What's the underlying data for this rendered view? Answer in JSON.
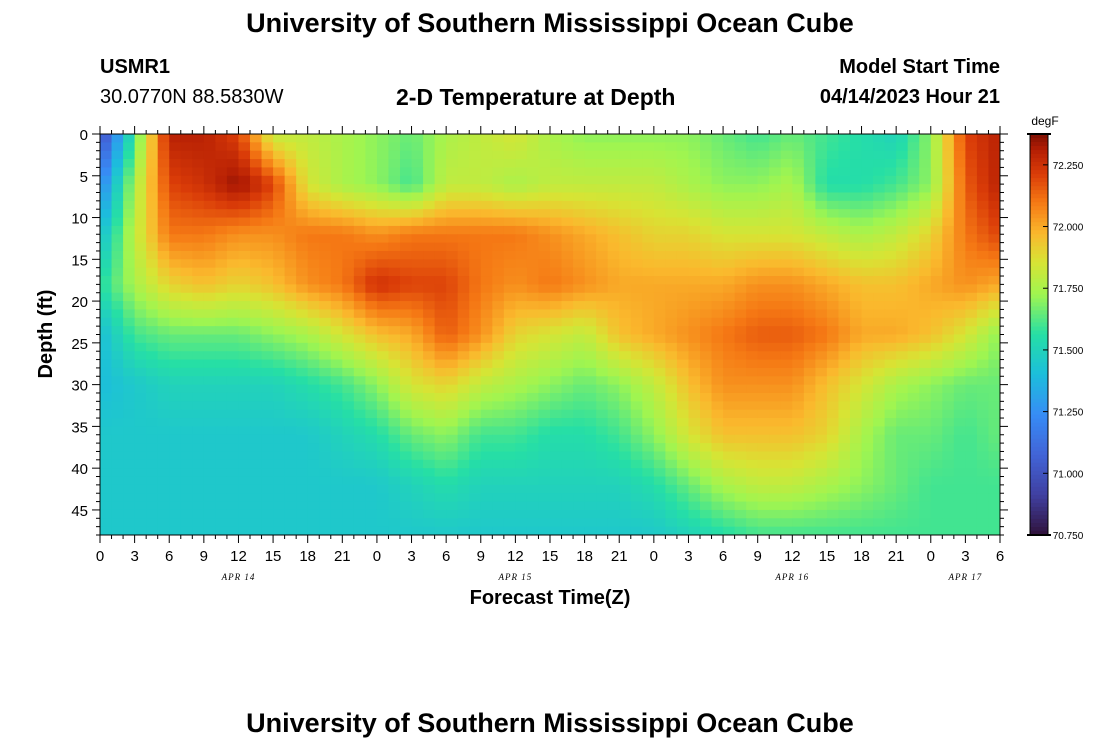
{
  "header": {
    "title": "University of Southern Mississippi Ocean Cube",
    "station_id": "USMR1",
    "station_coords": "30.0770N  88.5830W",
    "chart_title": "2-D Temperature at Depth",
    "model_start_label": "Model Start Time",
    "model_start_value": "04/14/2023 Hour 21"
  },
  "footer": {
    "title": "University of Southern Mississippi Ocean Cube"
  },
  "chart_data": {
    "type": "heatmap",
    "title": "2-D Temperature at Depth",
    "xlabel": "Forecast Time(Z)",
    "ylabel": "Depth (ft)",
    "x_range_hours": [
      0,
      78
    ],
    "y_range_ft": [
      0,
      48
    ],
    "x_tick_labels": [
      "0",
      "3",
      "6",
      "9",
      "12",
      "15",
      "18",
      "21",
      "0",
      "3",
      "6",
      "9",
      "12",
      "15",
      "18",
      "21",
      "0",
      "3",
      "6",
      "9",
      "12",
      "15",
      "18",
      "21",
      "0",
      "3",
      "6"
    ],
    "date_labels": [
      {
        "text": "APR 14",
        "hour": 12
      },
      {
        "text": "APR 15",
        "hour": 36
      },
      {
        "text": "APR 16",
        "hour": 60
      },
      {
        "text": "APR 17",
        "hour": 75
      }
    ],
    "y_tick_labels": [
      "0",
      "5",
      "10",
      "15",
      "20",
      "25",
      "30",
      "35",
      "40",
      "45"
    ],
    "y_tick_values": [
      0,
      5,
      10,
      15,
      20,
      25,
      30,
      35,
      40,
      45
    ],
    "colorbar": {
      "unit": "degF",
      "min": 70.75,
      "max": 72.375,
      "tick_labels": [
        "72.250",
        "72.000",
        "71.750",
        "71.500",
        "71.250",
        "71.000",
        "70.750"
      ],
      "tick_values": [
        72.25,
        72.0,
        71.75,
        71.5,
        71.25,
        71.0,
        70.75
      ]
    },
    "times_hours": [
      0,
      3,
      6,
      9,
      12,
      15,
      18,
      21,
      24,
      27,
      30,
      33,
      36,
      39,
      42,
      45,
      48,
      51,
      54,
      57,
      60,
      63,
      66,
      69,
      72,
      75,
      78
    ],
    "depths_ft": [
      0,
      6,
      12,
      18,
      24,
      30,
      36,
      42,
      48
    ],
    "temperature_degF": [
      [
        70.95,
        71.6,
        72.3,
        72.3,
        72.2,
        71.8,
        71.8,
        71.75,
        71.7,
        71.65,
        71.75,
        71.8,
        71.85,
        71.75,
        71.7,
        71.7,
        71.7,
        71.7,
        71.65,
        71.6,
        71.65,
        71.6,
        71.55,
        71.5,
        71.7,
        72.2,
        72.3
      ],
      [
        71.2,
        71.75,
        72.2,
        72.25,
        72.35,
        72.2,
        71.85,
        71.75,
        71.7,
        71.6,
        71.8,
        71.8,
        71.75,
        71.8,
        71.8,
        71.8,
        71.8,
        71.75,
        71.7,
        71.7,
        71.75,
        71.55,
        71.55,
        71.6,
        71.7,
        72.15,
        72.3
      ],
      [
        71.4,
        71.8,
        72.1,
        72.1,
        72.05,
        72.05,
        72.1,
        72.1,
        72.05,
        72.1,
        72.1,
        72.1,
        72.1,
        72.05,
        72.0,
        71.95,
        71.9,
        71.9,
        71.85,
        71.85,
        71.85,
        71.8,
        71.75,
        71.8,
        71.9,
        72.1,
        72.2
      ],
      [
        71.55,
        71.75,
        71.9,
        71.95,
        71.9,
        71.95,
        72.05,
        72.1,
        72.25,
        72.2,
        72.2,
        72.1,
        72.05,
        72.1,
        72.05,
        72.0,
        72.0,
        72.0,
        72.0,
        72.05,
        72.05,
        72.0,
        71.95,
        71.95,
        72.0,
        72.05,
        72.0
      ],
      [
        71.4,
        71.6,
        71.65,
        71.65,
        71.65,
        71.7,
        71.75,
        71.85,
        71.95,
        72.0,
        72.15,
        72.05,
        71.9,
        71.85,
        71.8,
        71.95,
        72.0,
        72.05,
        72.1,
        72.15,
        72.15,
        72.1,
        72.0,
        72.0,
        71.95,
        71.85,
        71.7
      ],
      [
        71.4,
        71.45,
        71.5,
        71.5,
        71.5,
        71.5,
        71.55,
        71.6,
        71.7,
        71.85,
        71.9,
        71.8,
        71.75,
        71.7,
        71.65,
        71.7,
        71.8,
        71.95,
        72.05,
        72.05,
        72.05,
        71.95,
        71.85,
        71.75,
        71.7,
        71.65,
        71.65
      ],
      [
        71.45,
        71.45,
        71.45,
        71.45,
        71.45,
        71.45,
        71.45,
        71.5,
        71.55,
        71.65,
        71.7,
        71.6,
        71.6,
        71.55,
        71.55,
        71.6,
        71.7,
        71.85,
        71.95,
        71.95,
        71.95,
        71.9,
        71.75,
        71.65,
        71.65,
        71.6,
        71.65
      ],
      [
        71.45,
        71.45,
        71.45,
        71.45,
        71.45,
        71.45,
        71.45,
        71.45,
        71.45,
        71.5,
        71.55,
        71.5,
        71.5,
        71.5,
        71.5,
        71.5,
        71.55,
        71.65,
        71.75,
        71.8,
        71.8,
        71.75,
        71.7,
        71.65,
        71.6,
        71.6,
        71.6
      ],
      [
        71.45,
        71.45,
        71.45,
        71.45,
        71.45,
        71.45,
        71.45,
        71.45,
        71.45,
        71.45,
        71.45,
        71.45,
        71.45,
        71.45,
        71.45,
        71.45,
        71.45,
        71.5,
        71.55,
        71.6,
        71.6,
        71.6,
        71.6,
        71.6,
        71.6,
        71.6,
        71.6
      ]
    ]
  }
}
